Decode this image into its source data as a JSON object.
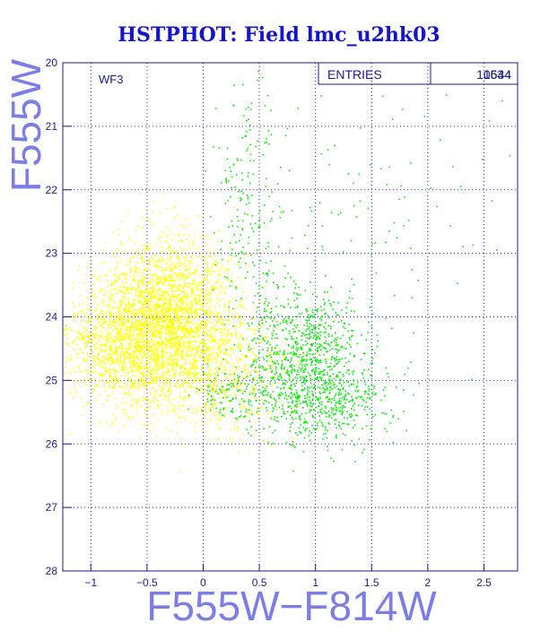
{
  "chart_data": {
    "type": "scatter",
    "title": "HSTPHOT: Field lmc_u2hk03",
    "panel_label": "WF3",
    "xlabel": "F555W−F814W",
    "ylabel": "F555W",
    "xlim": [
      -1.25,
      2.8
    ],
    "ylim": [
      28,
      20
    ],
    "x_reversed": false,
    "y_reversed": true,
    "xticks": [
      -1,
      -0.5,
      0,
      0.5,
      1,
      1.5,
      2,
      2.5
    ],
    "xtick_labels": [
      "−1",
      "−0.5",
      "0",
      "0.5",
      "1",
      "1.5",
      "2",
      "2.5"
    ],
    "yticks": [
      20,
      21,
      22,
      23,
      24,
      25,
      26,
      27,
      28
    ],
    "ytick_labels": [
      "20",
      "21",
      "22",
      "23",
      "24",
      "25",
      "26",
      "27",
      "28"
    ],
    "grid": true,
    "stats_box": {
      "label": "ENTRIES",
      "values": [
        "10534",
        "1644"
      ]
    },
    "series": [
      {
        "color": "#ffff00",
        "count": 10534,
        "clusters": [
          {
            "cx": -0.35,
            "cy": 24.15,
            "sx": 0.32,
            "sy": 0.55,
            "weight": 0.55
          },
          {
            "cx": -0.75,
            "cy": 24.5,
            "sx": 0.28,
            "sy": 0.45,
            "weight": 0.2
          },
          {
            "cx": 0.1,
            "cy": 24.8,
            "sx": 0.35,
            "sy": 0.55,
            "weight": 0.15
          },
          {
            "cx": -0.3,
            "cy": 23.4,
            "sx": 0.25,
            "sy": 0.45,
            "weight": 0.1
          }
        ]
      },
      {
        "color": "#00ee00",
        "count": 1644,
        "clusters": [
          {
            "cx": 0.9,
            "cy": 24.6,
            "sx": 0.25,
            "sy": 0.55,
            "weight": 0.5
          },
          {
            "cx": 1.1,
            "cy": 25.3,
            "sx": 0.3,
            "sy": 0.35,
            "weight": 0.25
          },
          {
            "cx": 0.4,
            "cy": 22.3,
            "sx": 0.15,
            "sy": 0.9,
            "weight": 0.12
          },
          {
            "cx": 0.3,
            "cy": 25.2,
            "sx": 0.2,
            "sy": 0.2,
            "weight": 0.08
          },
          {
            "cx": 1.6,
            "cy": 22.5,
            "sx": 0.5,
            "sy": 1.2,
            "weight": 0.05
          }
        ]
      }
    ]
  },
  "colors": {
    "frame": "#1a1a8c",
    "grid": "#2a2aa0",
    "title": "#1414c8",
    "axis_label": "#7d7de6",
    "tick_label": "#1a1a8c"
  }
}
